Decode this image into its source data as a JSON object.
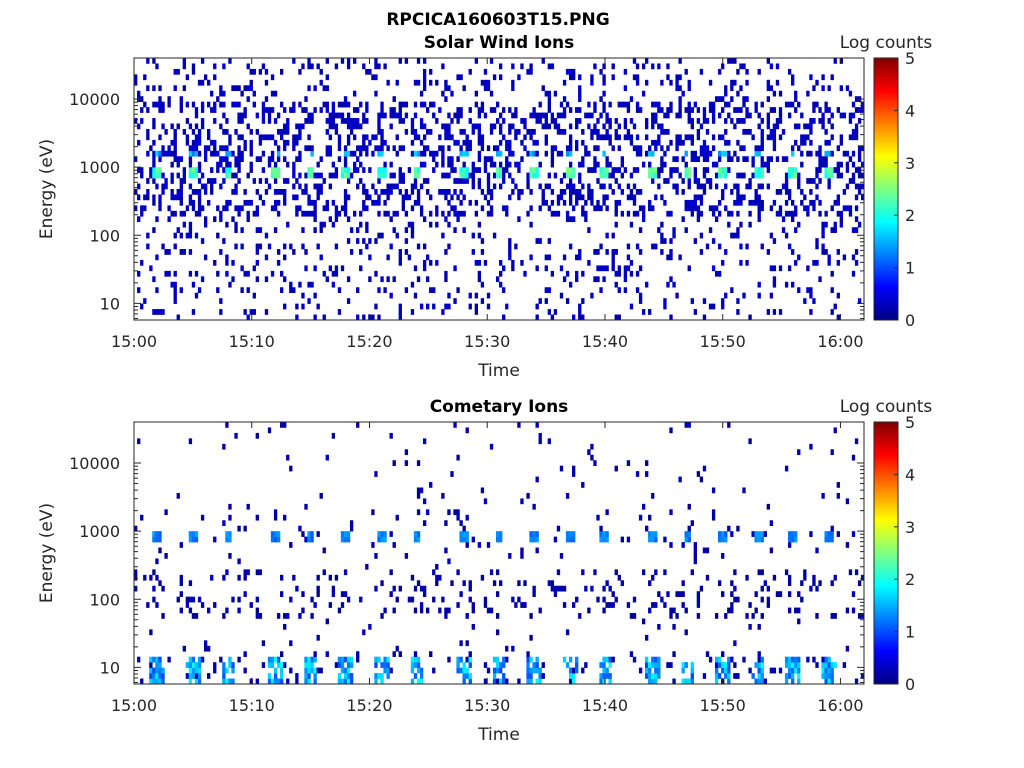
{
  "figure": {
    "title": "RPCICA160603T15.PNG"
  },
  "chart_data": [
    {
      "type": "heatmap",
      "title": "Solar Wind Ions",
      "xlabel": "Time",
      "ylabel": "Energy (eV)",
      "x_ticks": [
        "15:00",
        "15:10",
        "15:20",
        "15:30",
        "15:40",
        "15:50",
        "16:00"
      ],
      "x_range": [
        "15:00",
        "16:02"
      ],
      "y_scale": "log",
      "y_ticks": [
        "10",
        "100",
        "1000",
        "10000"
      ],
      "y_range": [
        5.7,
        40000
      ],
      "colorbar": {
        "label": "Log counts",
        "range": [
          0,
          5
        ],
        "ticks": [
          "0",
          "1",
          "2",
          "3",
          "4",
          "5"
        ],
        "colormap": "jet"
      },
      "features": {
        "periodic_peak_energy_eV": 800,
        "secondary_peak_energy_eV": 1600,
        "peak_times": [
          "15:02",
          "15:05",
          "15:08",
          "15:12",
          "15:15",
          "15:18",
          "15:21",
          "15:24",
          "15:28",
          "15:31",
          "15:34",
          "15:37",
          "15:40",
          "15:44",
          "15:47",
          "15:50",
          "15:53",
          "15:56",
          "15:59"
        ],
        "peak_log_counts": 2.3,
        "background_log_counts": 0.2
      }
    },
    {
      "type": "heatmap",
      "title": "Cometary Ions",
      "xlabel": "Time",
      "ylabel": "Energy (eV)",
      "x_ticks": [
        "15:00",
        "15:10",
        "15:20",
        "15:30",
        "15:40",
        "15:50",
        "16:00"
      ],
      "x_range": [
        "15:00",
        "16:02"
      ],
      "y_scale": "log",
      "y_ticks": [
        "10",
        "100",
        "1000",
        "10000"
      ],
      "y_range": [
        5.7,
        40000
      ],
      "colorbar": {
        "label": "Log counts",
        "range": [
          0,
          5
        ],
        "ticks": [
          "0",
          "1",
          "2",
          "3",
          "4",
          "5"
        ],
        "colormap": "jet"
      },
      "features": {
        "periodic_peak_energy_eV": 800,
        "low_energy_band_eV": [
          5.7,
          15
        ],
        "peak_times": [
          "15:02",
          "15:05",
          "15:08",
          "15:12",
          "15:15",
          "15:18",
          "15:21",
          "15:24",
          "15:28",
          "15:31",
          "15:34",
          "15:37",
          "15:40",
          "15:44",
          "15:47",
          "15:50",
          "15:53",
          "15:56",
          "15:59"
        ],
        "peak_log_counts": 1.3,
        "low_energy_log_counts": 1.9,
        "background_log_counts": 0.1
      }
    }
  ]
}
